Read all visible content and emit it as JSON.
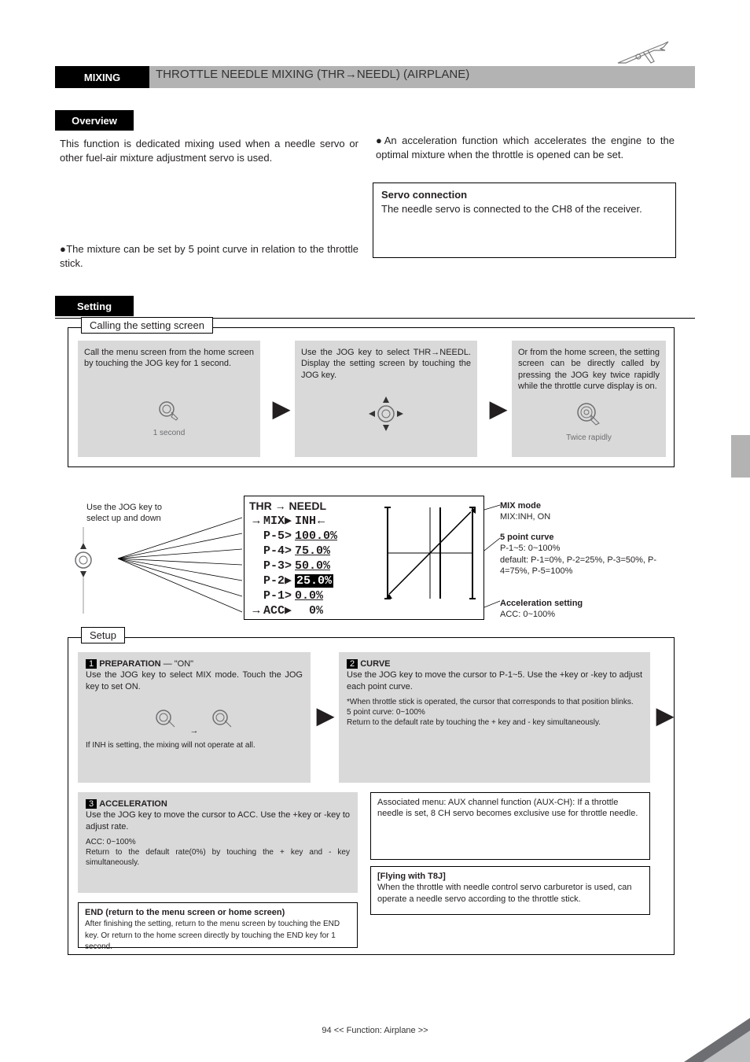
{
  "header": {
    "section": "MIXING",
    "title": "THROTTLE NEEDLE MIXING  (THR→NEEDL)  (AIRPLANE)"
  },
  "overview": {
    "label": "Overview",
    "intro": "This function is dedicated mixing used when a needle servo or other fuel-air mixture adjustment servo is used.",
    "bullet_left": "The mixture can be set by 5 point curve in relation to the throttle stick.",
    "bullet_right": "An acceleration function which accelerates the engine to the optimal mixture when the throttle is opened can be set.",
    "conn_note_title": "Servo connection",
    "conn_note_body": "The needle servo is connected to the CH8 of the receiver."
  },
  "setting": {
    "label": "Setting"
  },
  "call": {
    "title": "Calling the setting screen",
    "col1": "Call the menu screen from the home screen by touching the JOG key for 1 second.",
    "col2": "Use the JOG key to select THR→NEEDL. Display the setting screen by touching the JOG key.",
    "col3": "Or from the home screen, the setting screen can be directly called by pressing the JOG key twice rapidly while the throttle curve display is on."
  },
  "lcd": {
    "title": "THR → NEEDL",
    "mix_label": "MIX",
    "mix_state": "INH",
    "rows": [
      {
        "p": "P-5>",
        "v": "100.0%"
      },
      {
        "p": "P-4>",
        "v": " 75.0%"
      },
      {
        "p": "P-3>",
        "v": " 50.0%"
      },
      {
        "p": "P-2▶",
        "v": " 25.0%",
        "inv": true
      },
      {
        "p": "P-1>",
        "v": "  0.0%"
      }
    ],
    "acc_label": "ACC▶",
    "acc_value": "0%",
    "graph": {
      "line_color": "#000",
      "bg_color": "#fff",
      "x_cursor": 0.62,
      "points": [
        [
          0.02,
          0.95
        ],
        [
          0.98,
          0.05
        ]
      ]
    }
  },
  "annotations": {
    "top_left": "Use the JOG key to select up and down",
    "mix_mode": "MIX mode",
    "mix_range": "MIX:INH, ON",
    "curve_title": "5 point curve",
    "curve_range": "P-1~5: 0~100%",
    "default": "default: P-1=0%, P-2=25%, P-3=50%, P-4=75%, P-5=100%",
    "acc_title": "Acceleration setting",
    "acc_range": "ACC: 0~100%"
  },
  "setup": {
    "title": "Setup",
    "b1": {
      "heading": "PREPARATION",
      "l1": "— \"ON\"",
      "text": "Use the JOG key to select MIX mode. Touch the JOG key to set ON.",
      "warn": "If INH is setting, the mixing will not operate at all."
    },
    "b2": {
      "heading": "CURVE",
      "text": "Use the JOG key to move the cursor to P-1~5. Use the +key or -key to adjust each point curve.",
      "sub1": "*When throttle stick is operated, the cursor that corresponds to that position blinks.",
      "sub2": "5 point curve: 0~100%",
      "sub3": "Return to the default rate by touching the + key and - key simultaneously."
    },
    "b3": {
      "heading": "ACCELERATION",
      "text": "Use the JOG key to move the cursor to ACC. Use the +key or -key to adjust rate.",
      "sub1": "ACC: 0~100%",
      "sub2": "Return to the default rate(0%) by touching the + key and - key simultaneously."
    },
    "note": {
      "text": "Associated menu: AUX channel function (AUX-CH): If a throttle needle is set, 8 CH servo becomes exclusive use for throttle needle.",
      "sw_title": "[Flying with T8J]",
      "sw_body": "When the throttle with needle control servo carburetor is used, can operate a needle servo according to the throttle stick."
    },
    "end": "END (return to the menu screen or home screen)",
    "end_body": "After finishing the setting, return to the menu screen by touching the END key. Or return to the home screen directly by touching the END key for 1 second."
  },
  "footer": "94  << Function: Airplane >>"
}
